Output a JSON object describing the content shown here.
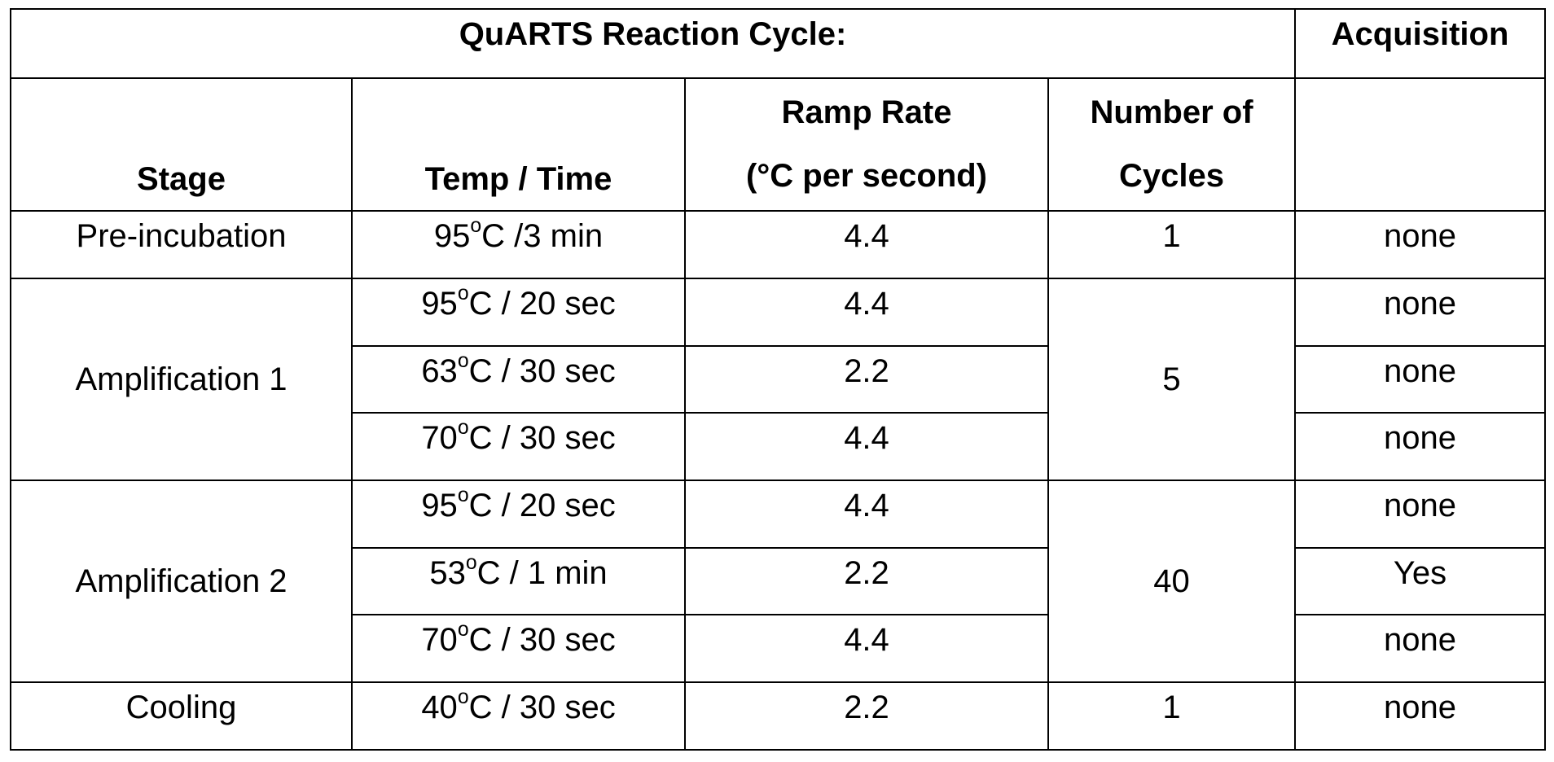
{
  "table": {
    "title": "QuARTS Reaction Cycle:",
    "acquisition_header": "Acquisition",
    "columns": {
      "stage": "Stage",
      "temp_time": "Temp / Time",
      "ramp_rate_line1": "Ramp Rate",
      "ramp_rate_line2": "(°C per second)",
      "cycles_line1": "Number of",
      "cycles_line2": "Cycles"
    },
    "degree_symbol": "o",
    "stages": [
      {
        "stage": "Pre-incubation",
        "cycles": "1",
        "steps": [
          {
            "temp": "95",
            "time": "C /3 min",
            "ramp": "4.4",
            "acquisition": "none"
          }
        ]
      },
      {
        "stage": "Amplification 1",
        "cycles": "5",
        "steps": [
          {
            "temp": "95",
            "time": "C / 20 sec",
            "ramp": "4.4",
            "acquisition": "none"
          },
          {
            "temp": "63",
            "time": "C / 30 sec",
            "ramp": "2.2",
            "acquisition": "none"
          },
          {
            "temp": "70",
            "time": "C / 30 sec",
            "ramp": "4.4",
            "acquisition": "none"
          }
        ]
      },
      {
        "stage": "Amplification 2",
        "cycles": "40",
        "steps": [
          {
            "temp": "95",
            "time": "C / 20 sec",
            "ramp": "4.4",
            "acquisition": "none"
          },
          {
            "temp": "53",
            "time": "C / 1 min",
            "ramp": "2.2",
            "acquisition": "Yes"
          },
          {
            "temp": "70",
            "time": "C / 30 sec",
            "ramp": "4.4",
            "acquisition": "none"
          }
        ]
      },
      {
        "stage": "Cooling",
        "cycles": "1",
        "steps": [
          {
            "temp": "40",
            "time": "C / 30 sec",
            "ramp": "2.2",
            "acquisition": "none"
          }
        ]
      }
    ]
  }
}
